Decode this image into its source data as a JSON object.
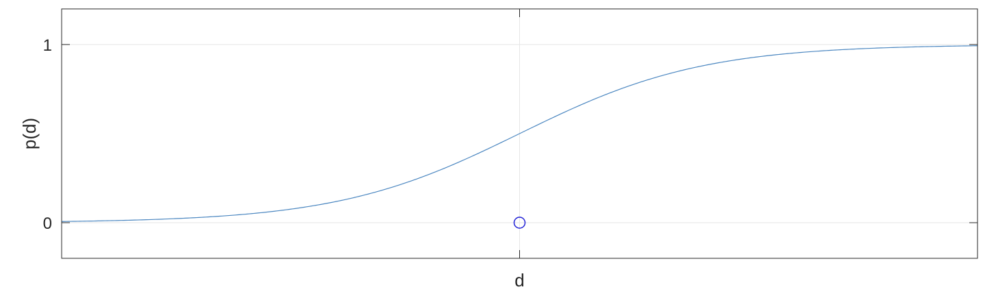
{
  "chart_data": {
    "type": "line",
    "title": "",
    "xlabel": "d",
    "ylabel": "p(d)",
    "xlim": [
      -5,
      5
    ],
    "ylim": [
      -0.2,
      1.2
    ],
    "xticks": [
      0
    ],
    "yticks": [
      0,
      1
    ],
    "ytick_labels": [
      "0",
      "1"
    ],
    "grid": true,
    "legend": "none",
    "series": [
      {
        "curve": "logistic",
        "color": "#4a86c0",
        "x": [
          -5,
          -4,
          -3,
          -2.5,
          -2,
          -1.5,
          -1,
          -0.5,
          0,
          0.5,
          1,
          1.5,
          2,
          2.5,
          3,
          4,
          5
        ],
        "y": [
          0.0,
          0.0003,
          0.0025,
          0.0067,
          0.018,
          0.047,
          0.119,
          0.269,
          0.5,
          0.731,
          0.881,
          0.953,
          0.982,
          0.993,
          0.9975,
          0.9997,
          1.0
        ]
      }
    ],
    "points": [
      {
        "x": 0,
        "y": 0,
        "marker": "circle",
        "color": "#1f1fd6"
      }
    ],
    "colors": {
      "frame": "#262626",
      "grid": "#e6e6e6"
    }
  }
}
